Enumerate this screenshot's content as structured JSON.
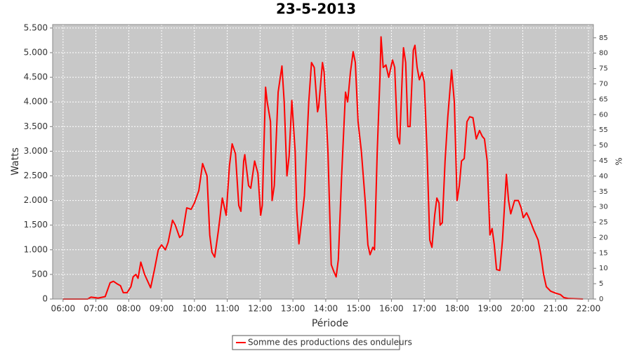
{
  "chart_data": {
    "type": "line",
    "title": "23-5-2013",
    "xlabel": "Période",
    "ylabel": "Watts",
    "y2label": "%",
    "x": [
      "06:00",
      "06:45",
      "06:51",
      "07:04",
      "07:17",
      "07:26",
      "07:32",
      "07:40",
      "07:45",
      "07:50",
      "07:57",
      "08:04",
      "08:08",
      "08:13",
      "08:17",
      "08:22",
      "08:29",
      "08:37",
      "08:40",
      "08:47",
      "08:54",
      "09:00",
      "09:07",
      "09:12",
      "09:20",
      "09:25",
      "09:33",
      "09:38",
      "09:46",
      "09:54",
      "10:00",
      "10:08",
      "10:15",
      "10:23",
      "10:28",
      "10:32",
      "10:37",
      "10:44",
      "10:51",
      "10:58",
      "11:04",
      "11:09",
      "11:15",
      "11:21",
      "11:25",
      "11:30",
      "11:32",
      "11:39",
      "11:43",
      "11:50",
      "11:56",
      "12:01",
      "12:04",
      "12:10",
      "12:13",
      "12:19",
      "12:22",
      "12:26",
      "12:33",
      "12:40",
      "12:44",
      "12:49",
      "12:53",
      "12:58",
      "13:04",
      "13:07",
      "13:11",
      "13:16",
      "13:21",
      "13:29",
      "13:34",
      "13:39",
      "13:45",
      "13:47",
      "13:54",
      "13:57",
      "14:04",
      "14:10",
      "14:15",
      "14:19",
      "14:23",
      "14:29",
      "14:36",
      "14:40",
      "14:45",
      "14:50",
      "14:54",
      "14:59",
      "15:05",
      "15:12",
      "15:17",
      "15:21",
      "15:26",
      "15:29",
      "15:34",
      "15:39",
      "15:41",
      "15:45",
      "15:50",
      "15:55",
      "16:02",
      "16:06",
      "16:11",
      "16:15",
      "16:20",
      "16:22",
      "16:26",
      "16:30",
      "16:34",
      "16:40",
      "16:43",
      "16:47",
      "16:51",
      "16:56",
      "17:00",
      "17:05",
      "17:10",
      "17:14",
      "17:19",
      "17:23",
      "17:27",
      "17:29",
      "17:33",
      "17:38",
      "17:43",
      "17:50",
      "17:55",
      "18:00",
      "18:04",
      "18:08",
      "18:13",
      "18:18",
      "18:23",
      "18:29",
      "18:35",
      "18:41",
      "18:46",
      "18:50",
      "18:55",
      "19:00",
      "19:04",
      "19:08",
      "19:12",
      "19:18",
      "19:23",
      "19:30",
      "19:34",
      "19:38",
      "19:45",
      "19:52",
      "19:57",
      "20:01",
      "20:07",
      "20:12",
      "20:20",
      "20:28",
      "20:33",
      "20:38",
      "20:43",
      "20:51",
      "21:00",
      "21:09",
      "21:15",
      "21:24",
      "21:50"
    ],
    "series": [
      {
        "name": "Somme des productions des onduleurs",
        "color": "#ff0000",
        "values": [
          0,
          0,
          40,
          20,
          50,
          330,
          360,
          300,
          270,
          130,
          130,
          250,
          450,
          500,
          420,
          750,
          500,
          300,
          230,
          600,
          1000,
          1100,
          1000,
          1150,
          1600,
          1500,
          1250,
          1300,
          1850,
          1820,
          1950,
          2200,
          2750,
          2500,
          1300,
          950,
          850,
          1400,
          2050,
          1700,
          2700,
          3150,
          2950,
          1900,
          1780,
          2800,
          2930,
          2300,
          2250,
          2800,
          2550,
          1700,
          1900,
          4300,
          4000,
          3600,
          2000,
          2300,
          4200,
          4730,
          4000,
          2500,
          2900,
          4030,
          3000,
          1800,
          1120,
          1600,
          2100,
          4000,
          4800,
          4700,
          3800,
          3900,
          4800,
          4600,
          3000,
          700,
          550,
          450,
          800,
          2500,
          4200,
          4000,
          4600,
          5020,
          4800,
          3600,
          3000,
          2000,
          1100,
          900,
          1050,
          1000,
          3000,
          4500,
          5320,
          4700,
          4750,
          4500,
          4850,
          4700,
          3300,
          3150,
          4600,
          5100,
          4800,
          3500,
          3500,
          5050,
          5150,
          4700,
          4450,
          4600,
          4400,
          3000,
          1200,
          1050,
          1700,
          2050,
          1950,
          1500,
          1550,
          2800,
          3700,
          4650,
          4000,
          2000,
          2300,
          2800,
          2850,
          3600,
          3700,
          3680,
          3250,
          3420,
          3300,
          3250,
          2800,
          1300,
          1430,
          1100,
          600,
          580,
          1200,
          2530,
          2000,
          1730,
          2000,
          2000,
          1850,
          1650,
          1750,
          1630,
          1400,
          1200,
          900,
          500,
          250,
          160,
          120,
          90,
          30,
          10,
          0
        ]
      }
    ],
    "xlim": [
      "05:41",
      "22:09"
    ],
    "xticks": [
      "06:00",
      "07:00",
      "08:00",
      "09:00",
      "10:00",
      "11:00",
      "12:00",
      "13:00",
      "14:00",
      "15:00",
      "16:00",
      "17:00",
      "18:00",
      "19:00",
      "20:00",
      "21:00",
      "22:00"
    ],
    "ylim": [
      0,
      5570
    ],
    "yticks": [
      0,
      {
        "value": 500,
        "label": "500"
      },
      {
        "value": 1000,
        "label": "1.000"
      },
      {
        "value": 1500,
        "label": "1.500"
      },
      {
        "value": 2000,
        "label": "2.000"
      },
      {
        "value": 2500,
        "label": "2.500"
      },
      {
        "value": 3000,
        "label": "3.000"
      },
      {
        "value": 3500,
        "label": "3.500"
      },
      {
        "value": 4000,
        "label": "4.000"
      },
      {
        "value": 4500,
        "label": "4.500"
      },
      {
        "value": 5000,
        "label": "5.000"
      },
      {
        "value": 5500,
        "label": "5.500"
      }
    ],
    "y2lim": [
      0,
      89.3
    ],
    "y2ticks": [
      0,
      5,
      10,
      15,
      20,
      25,
      30,
      35,
      40,
      45,
      50,
      55,
      60,
      65,
      70,
      75,
      80,
      85
    ],
    "grid": true,
    "legend": "bottom"
  }
}
